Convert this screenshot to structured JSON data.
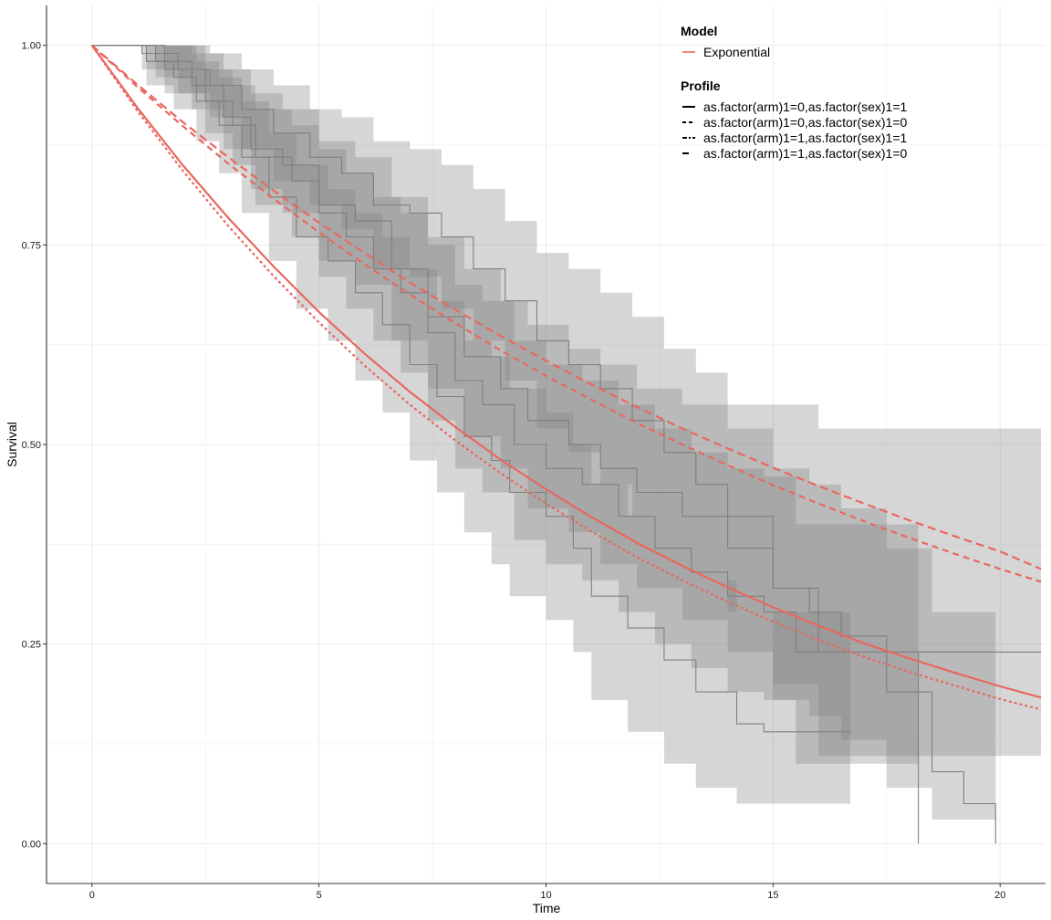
{
  "chart_data": {
    "type": "line",
    "title": "",
    "xlabel": "Time",
    "ylabel": "Survival",
    "xlim": [
      -1,
      21
    ],
    "ylim": [
      -0.05,
      1.05
    ],
    "x_ticks": [
      0,
      5,
      10,
      15,
      20
    ],
    "y_ticks": [
      0.0,
      0.25,
      0.5,
      0.75,
      1.0
    ],
    "x_tick_labels": [
      "0",
      "5",
      "10",
      "15",
      "20"
    ],
    "y_tick_labels": [
      "0.00",
      "0.25",
      "0.50",
      "0.75",
      "1.00"
    ],
    "grid": true,
    "legend_position": "top-right",
    "legend": {
      "model_title": "Model",
      "model_entries": [
        {
          "label": "Exponential",
          "color": "#e8685f"
        }
      ],
      "profile_title": "Profile",
      "profile_entries": [
        {
          "label": "as.factor(arm)1=0,as.factor(sex)1=1",
          "dash": "solid"
        },
        {
          "label": "as.factor(arm)1=0,as.factor(sex)1=0",
          "dash": "dashed"
        },
        {
          "label": "as.factor(arm)1=1,as.factor(sex)1=1",
          "dash": "dotdash"
        },
        {
          "label": "as.factor(arm)1=1,as.factor(sex)1=0",
          "dash": "longdash"
        }
      ]
    },
    "colors": {
      "model_line": "#e8685f",
      "km_line": "#7f7f7f",
      "ci_band": "#7f7f7f",
      "grid": "#ebebeb",
      "axis": "#333333"
    },
    "model_series": [
      {
        "profile": "as.factor(arm)1=0,as.factor(sex)1=1",
        "dash": "solid",
        "x": [
          0,
          1,
          2,
          3,
          4,
          5,
          6,
          7,
          8,
          9,
          10,
          11,
          12,
          13,
          14,
          15,
          16,
          17,
          18,
          19,
          20,
          20.9
        ],
        "y": [
          1.0,
          0.922,
          0.85,
          0.784,
          0.723,
          0.666,
          0.614,
          0.566,
          0.522,
          0.481,
          0.444,
          0.409,
          0.377,
          0.348,
          0.321,
          0.296,
          0.273,
          0.251,
          0.232,
          0.214,
          0.197,
          0.183
        ]
      },
      {
        "profile": "as.factor(arm)1=0,as.factor(sex)1=0",
        "dash": "dashed",
        "x": [
          0,
          1,
          2,
          3,
          4,
          5,
          6,
          7,
          8,
          9,
          10,
          11,
          12,
          13,
          14,
          15,
          16,
          17,
          18,
          19,
          20,
          20.9
        ],
        "y": [
          1.0,
          0.948,
          0.899,
          0.852,
          0.808,
          0.766,
          0.726,
          0.688,
          0.652,
          0.618,
          0.586,
          0.556,
          0.527,
          0.5,
          0.474,
          0.449,
          0.426,
          0.404,
          0.383,
          0.363,
          0.344,
          0.328
        ]
      },
      {
        "profile": "as.factor(arm)1=1,as.factor(sex)1=1",
        "dash": "dotdash",
        "x": [
          0,
          1,
          2,
          3,
          4,
          5,
          6,
          7,
          8,
          9,
          10,
          11,
          12,
          13,
          14,
          15,
          16,
          17,
          18,
          19,
          20,
          20.9
        ],
        "y": [
          1.0,
          0.918,
          0.843,
          0.774,
          0.711,
          0.653,
          0.599,
          0.55,
          0.505,
          0.464,
          0.426,
          0.391,
          0.359,
          0.33,
          0.303,
          0.278,
          0.255,
          0.234,
          0.215,
          0.198,
          0.181,
          0.168
        ]
      },
      {
        "profile": "as.factor(arm)1=1,as.factor(sex)1=0",
        "dash": "longdash",
        "x": [
          0,
          1,
          2,
          3,
          4,
          5,
          6,
          7,
          8,
          9,
          10,
          11,
          12,
          13,
          14,
          15,
          16,
          17,
          18,
          19,
          20,
          20.9
        ],
        "y": [
          1.0,
          0.951,
          0.904,
          0.86,
          0.818,
          0.778,
          0.74,
          0.703,
          0.669,
          0.636,
          0.605,
          0.575,
          0.547,
          0.52,
          0.495,
          0.471,
          0.448,
          0.426,
          0.405,
          0.385,
          0.366,
          0.344
        ]
      }
    ],
    "km_curves": [
      {
        "profile": "as.factor(arm)1=0,as.factor(sex)1=1",
        "x": [
          0,
          1.2,
          1.8,
          2.3,
          2.8,
          3.3,
          3.9,
          4.5,
          5.2,
          5.8,
          6.4,
          7.0,
          7.6,
          8.2,
          8.8,
          9.2,
          10.0,
          10.6,
          11.0,
          11.8,
          12.6,
          13.3,
          14.2,
          14.8,
          15.6,
          16.7
        ],
        "y": [
          1.0,
          0.98,
          0.96,
          0.93,
          0.9,
          0.86,
          0.81,
          0.76,
          0.73,
          0.69,
          0.65,
          0.6,
          0.56,
          0.51,
          0.48,
          0.44,
          0.41,
          0.37,
          0.31,
          0.27,
          0.23,
          0.19,
          0.15,
          0.14,
          0.14,
          0.14
        ],
        "ci_lower": [
          1.0,
          0.95,
          0.92,
          0.88,
          0.84,
          0.79,
          0.73,
          0.67,
          0.63,
          0.58,
          0.54,
          0.48,
          0.44,
          0.39,
          0.35,
          0.31,
          0.28,
          0.24,
          0.18,
          0.14,
          0.1,
          0.07,
          0.05,
          0.05,
          0.05,
          0.05
        ],
        "ci_upper": [
          1.0,
          1.0,
          1.0,
          0.98,
          0.96,
          0.93,
          0.89,
          0.85,
          0.82,
          0.79,
          0.76,
          0.72,
          0.68,
          0.63,
          0.61,
          0.57,
          0.54,
          0.5,
          0.45,
          0.41,
          0.37,
          0.33,
          0.29,
          0.29,
          0.29,
          0.29
        ]
      },
      {
        "profile": "as.factor(arm)1=0,as.factor(sex)1=0",
        "x": [
          0,
          1.4,
          2.2,
          2.9,
          3.5,
          4.2,
          5.0,
          5.8,
          6.6,
          7.4,
          8.2,
          9.0,
          9.6,
          10.5,
          11.2,
          12.0,
          13.0,
          14.0,
          15.0,
          15.8,
          16.5,
          17.5,
          18.5,
          19.2,
          19.9
        ],
        "y": [
          1.0,
          0.98,
          0.95,
          0.91,
          0.87,
          0.85,
          0.8,
          0.78,
          0.72,
          0.66,
          0.61,
          0.57,
          0.53,
          0.5,
          0.47,
          0.44,
          0.41,
          0.37,
          0.32,
          0.29,
          0.26,
          0.19,
          0.09,
          0.05,
          0.0
        ],
        "ci_lower": [
          1.0,
          0.96,
          0.92,
          0.87,
          0.82,
          0.79,
          0.73,
          0.7,
          0.63,
          0.57,
          0.51,
          0.47,
          0.42,
          0.39,
          0.35,
          0.32,
          0.28,
          0.24,
          0.18,
          0.16,
          0.13,
          0.07,
          0.03,
          0.03,
          0.03
        ],
        "ci_upper": [
          1.0,
          1.0,
          0.99,
          0.97,
          0.94,
          0.92,
          0.88,
          0.86,
          0.81,
          0.76,
          0.72,
          0.68,
          0.65,
          0.62,
          0.6,
          0.57,
          0.55,
          0.52,
          0.47,
          0.45,
          0.42,
          0.37,
          0.29,
          0.29,
          0.29
        ]
      },
      {
        "profile": "as.factor(arm)1=1,as.factor(sex)1=1",
        "x": [
          0,
          1.6,
          2.5,
          3.1,
          3.6,
          4.4,
          5.0,
          5.6,
          6.2,
          6.8,
          7.4,
          8.0,
          8.6,
          9.3,
          10.0,
          10.8,
          11.6,
          12.4,
          13.2,
          14.0,
          14.8,
          15.5,
          16.2,
          17.0,
          18.2
        ],
        "y": [
          1.0,
          0.97,
          0.93,
          0.9,
          0.86,
          0.83,
          0.79,
          0.76,
          0.72,
          0.69,
          0.64,
          0.58,
          0.55,
          0.5,
          0.47,
          0.45,
          0.41,
          0.37,
          0.34,
          0.31,
          0.29,
          0.24,
          0.24,
          0.24,
          0.0
        ],
        "ci_lower": [
          1.0,
          0.94,
          0.89,
          0.85,
          0.8,
          0.76,
          0.71,
          0.67,
          0.63,
          0.59,
          0.53,
          0.47,
          0.44,
          0.38,
          0.35,
          0.33,
          0.29,
          0.25,
          0.22,
          0.19,
          0.18,
          0.1,
          0.1,
          0.1,
          0.1
        ],
        "ci_upper": [
          1.0,
          1.0,
          0.97,
          0.95,
          0.92,
          0.9,
          0.87,
          0.84,
          0.81,
          0.79,
          0.75,
          0.7,
          0.68,
          0.63,
          0.6,
          0.58,
          0.55,
          0.52,
          0.49,
          0.47,
          0.46,
          0.4,
          0.4,
          0.4,
          0.4
        ]
      },
      {
        "profile": "as.factor(arm)1=1,as.factor(sex)1=0",
        "x": [
          0,
          1.1,
          1.9,
          2.6,
          3.3,
          4.0,
          4.8,
          5.5,
          6.2,
          7.0,
          7.7,
          8.4,
          9.1,
          9.8,
          10.5,
          11.2,
          11.9,
          12.6,
          13.3,
          14.0,
          15.0,
          16.0,
          17.0,
          18.0,
          20.9
        ],
        "y": [
          1.0,
          0.99,
          0.97,
          0.95,
          0.92,
          0.89,
          0.86,
          0.84,
          0.8,
          0.79,
          0.76,
          0.72,
          0.68,
          0.63,
          0.6,
          0.57,
          0.53,
          0.49,
          0.45,
          0.41,
          0.32,
          0.24,
          0.24,
          0.24,
          0.24
        ],
        "ci_lower": [
          1.0,
          0.97,
          0.94,
          0.91,
          0.87,
          0.83,
          0.8,
          0.77,
          0.72,
          0.71,
          0.67,
          0.63,
          0.58,
          0.52,
          0.49,
          0.45,
          0.41,
          0.37,
          0.33,
          0.29,
          0.2,
          0.11,
          0.11,
          0.11,
          0.11
        ],
        "ci_upper": [
          1.0,
          1.0,
          1.0,
          0.99,
          0.97,
          0.95,
          0.92,
          0.91,
          0.88,
          0.87,
          0.85,
          0.82,
          0.78,
          0.74,
          0.72,
          0.69,
          0.66,
          0.62,
          0.59,
          0.55,
          0.55,
          0.52,
          0.52,
          0.52,
          0.52
        ]
      }
    ]
  }
}
